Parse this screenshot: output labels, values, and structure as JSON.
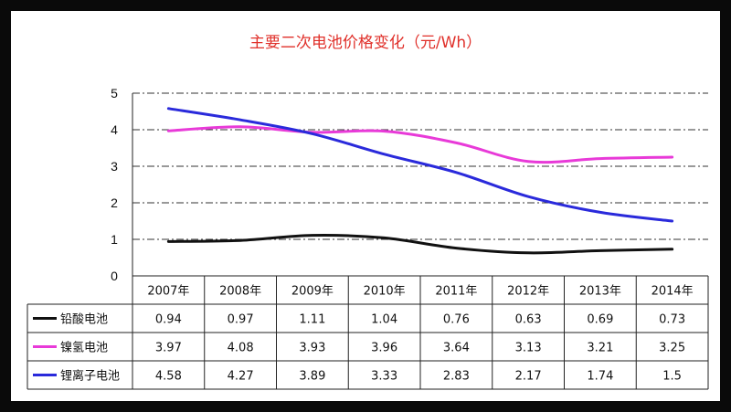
{
  "chart_data": {
    "type": "line",
    "title": "主要二次电池价格变化（元/Wh）",
    "xlabel": "",
    "ylabel": "",
    "ylim": [
      0,
      5
    ],
    "yticks": [
      0,
      1,
      2,
      3,
      4,
      5
    ],
    "grid": "horizontal dash-dot",
    "legend": "data table below plot",
    "categories": [
      "2007年",
      "2008年",
      "2009年",
      "2010年",
      "2011年",
      "2012年",
      "2013年",
      "2014年"
    ],
    "series": [
      {
        "name": "铅酸电池",
        "color": "#111111",
        "values": [
          0.94,
          0.97,
          1.11,
          1.04,
          0.76,
          0.63,
          0.69,
          0.73
        ]
      },
      {
        "name": "镍氢电池",
        "color": "#e83ad8",
        "values": [
          3.97,
          4.08,
          3.93,
          3.96,
          3.64,
          3.13,
          3.21,
          3.25
        ]
      },
      {
        "name": "锂离子电池",
        "color": "#2a2adb",
        "values": [
          4.58,
          4.27,
          3.89,
          3.33,
          2.83,
          2.17,
          1.74,
          1.5
        ]
      }
    ]
  }
}
